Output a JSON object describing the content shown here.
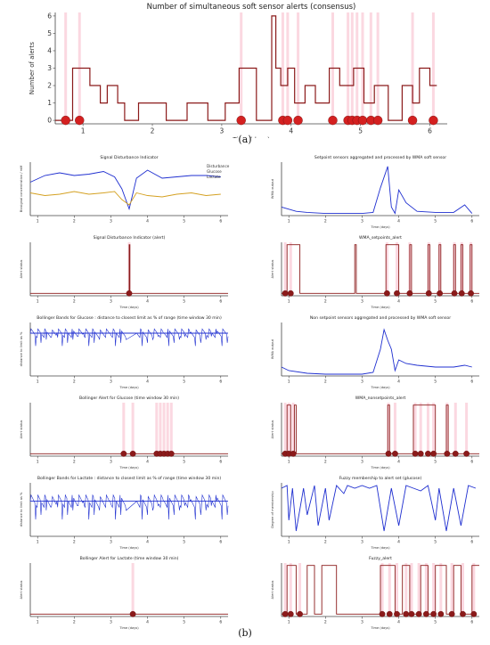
{
  "captions": {
    "a": "(a)",
    "b": "(b)"
  },
  "colors": {
    "alert": "#8b1a1a",
    "dot": "#d42020",
    "signal": "#1f2fd0",
    "signal2": "#d4a020",
    "band": "#f7b8c8"
  },
  "chart_data": [
    {
      "type": "line",
      "title": "Number of simultaneous soft sensor alerts (consensus)",
      "xlabel": "Time (days)",
      "ylabel": "Number of alerts",
      "xlim": [
        0.6,
        6.25
      ],
      "ylim": [
        -0.2,
        6.2
      ],
      "xticks": [
        1,
        2,
        3,
        4,
        5,
        6
      ],
      "yticks": [
        0,
        1,
        2,
        3,
        4,
        5,
        6
      ],
      "series": [
        {
          "x": [
            0.6,
            0.85,
            0.85,
            1.1,
            1.1,
            1.25,
            1.25,
            1.35,
            1.35,
            1.5,
            1.5,
            1.6,
            1.6,
            1.8,
            1.8,
            2.2,
            2.2,
            2.5,
            2.5,
            2.8,
            2.8,
            3.05,
            3.05,
            3.25,
            3.25,
            3.5,
            3.5,
            3.72,
            3.72,
            3.78,
            3.78,
            3.85,
            3.85,
            3.95,
            3.95,
            4.05,
            4.05,
            4.2,
            4.2,
            4.35,
            4.35,
            4.55,
            4.55,
            4.7,
            4.7,
            4.9,
            4.9,
            5.05,
            5.05,
            5.2,
            5.2,
            5.4,
            5.4,
            5.6,
            5.6,
            5.75,
            5.75,
            5.85,
            5.85,
            6.0,
            6.0,
            6.1
          ],
          "y": [
            0,
            0,
            3,
            3,
            2,
            2,
            1,
            1,
            2,
            2,
            1,
            1,
            0,
            0,
            1,
            1,
            0,
            0,
            1,
            1,
            0,
            0,
            1,
            1,
            3,
            3,
            0,
            0,
            6,
            6,
            3,
            3,
            2,
            2,
            3,
            3,
            1,
            1,
            2,
            2,
            1,
            1,
            3,
            3,
            2,
            2,
            3,
            3,
            1,
            1,
            2,
            2,
            0,
            0,
            2,
            2,
            1,
            1,
            3,
            3,
            2,
            2
          ]
        }
      ],
      "alert_markers_x": [
        0.75,
        0.95,
        3.28,
        3.88,
        3.95,
        4.1,
        4.6,
        4.82,
        4.88,
        4.95,
        5.03,
        5.15,
        5.25,
        5.75,
        6.05
      ]
    },
    {
      "type": "line",
      "title": "Signal Disturbance Indicator",
      "ylabel": "Biosignal concentration / mM",
      "xticks": [
        1,
        2,
        3,
        4,
        5,
        6
      ],
      "xlim": [
        0.8,
        6.2
      ],
      "ylim": [
        0,
        4
      ],
      "legend": [
        "Disturbance",
        "Glucose",
        "Lactate"
      ],
      "series": [
        {
          "name": "Glucose",
          "x": [
            0.8,
            1.2,
            1.6,
            2.0,
            2.4,
            2.8,
            3.1,
            3.3,
            3.5,
            3.7,
            4.0,
            4.4,
            4.8,
            5.2,
            5.6,
            6.0
          ],
          "y": [
            2.5,
            3.0,
            3.2,
            3.0,
            3.1,
            3.3,
            2.9,
            2.0,
            0.5,
            2.8,
            3.4,
            2.8,
            2.9,
            3.0,
            3.0,
            2.9
          ]
        },
        {
          "name": "Lactate",
          "x": [
            0.8,
            1.2,
            1.6,
            2.0,
            2.4,
            2.8,
            3.1,
            3.3,
            3.5,
            3.7,
            4.0,
            4.4,
            4.8,
            5.2,
            5.6,
            6.0
          ],
          "y": [
            1.7,
            1.5,
            1.6,
            1.8,
            1.6,
            1.7,
            1.8,
            1.2,
            0.8,
            1.7,
            1.5,
            1.4,
            1.6,
            1.7,
            1.5,
            1.6
          ]
        }
      ]
    },
    {
      "type": "line",
      "title": "Setpoint sensors aggregated and processed by WMA soft sensor",
      "ylabel": "WMA output",
      "xlabel": "Time (days)",
      "xticks": [
        1,
        2,
        3,
        4,
        5,
        6
      ],
      "xlim": [
        0.8,
        6.2
      ],
      "ylim": [
        0,
        2.5
      ],
      "series": [
        {
          "x": [
            0.8,
            1.0,
            1.2,
            1.5,
            2.0,
            2.5,
            3.0,
            3.3,
            3.5,
            3.6,
            3.7,
            3.8,
            3.9,
            4.0,
            4.2,
            4.5,
            5.0,
            5.5,
            5.8,
            6.0
          ],
          "y": [
            0.4,
            0.3,
            0.2,
            0.15,
            0.1,
            0.1,
            0.1,
            0.15,
            1.3,
            1.8,
            2.3,
            0.4,
            0.1,
            1.2,
            0.6,
            0.2,
            0.15,
            0.15,
            0.5,
            0.1
          ]
        }
      ]
    },
    {
      "type": "line",
      "title": "Signal Disturbance Indicator (alert)",
      "ylabel": "Alert status",
      "xlabel": "Time (days)",
      "xticks": [
        1,
        2,
        3,
        4,
        5,
        6
      ],
      "xlim": [
        0.8,
        6.2
      ],
      "ylim": [
        -0.05,
        1.05
      ],
      "series": [
        {
          "x": [
            0.8,
            3.5,
            3.5,
            3.52,
            3.52,
            6.2
          ],
          "y": [
            0,
            0,
            1,
            1,
            0,
            0
          ]
        }
      ],
      "alert_markers_x": [
        3.5
      ]
    },
    {
      "type": "line",
      "title": "WMA_setpoints_alert",
      "ylabel": "Alert status",
      "xlabel": "Time (days)",
      "xticks": [
        1,
        2,
        3,
        4,
        5,
        6
      ],
      "xlim": [
        0.8,
        6.2
      ],
      "ylim": [
        -0.05,
        1.05
      ],
      "series": [
        {
          "x": [
            0.8,
            0.95,
            0.95,
            1.3,
            1.3,
            2.8,
            2.8,
            2.84,
            2.84,
            3.65,
            3.65,
            4.0,
            4.0,
            4.3,
            4.3,
            4.35,
            4.35,
            4.8,
            4.8,
            4.85,
            4.85,
            5.1,
            5.1,
            5.15,
            5.15,
            5.5,
            5.5,
            5.55,
            5.55,
            5.7,
            5.7,
            5.75,
            5.75,
            5.95,
            5.95,
            6.0,
            6.0,
            6.2
          ],
          "y": [
            0,
            0,
            1,
            1,
            0,
            0,
            1,
            1,
            0,
            0,
            1,
            1,
            0,
            0,
            1,
            1,
            0,
            0,
            1,
            1,
            0,
            0,
            1,
            1,
            0,
            0,
            1,
            1,
            0,
            0,
            1,
            1,
            0,
            0,
            1,
            1,
            0,
            0
          ]
        }
      ],
      "alert_markers_x": [
        0.9,
        1.05,
        3.68,
        3.95,
        4.3,
        4.82,
        5.12,
        5.52,
        5.72,
        5.97
      ]
    },
    {
      "type": "line",
      "title": "Bollinger Bands for Glucose : distance to closest limit as % of range (time window 30 min)",
      "ylabel": "distance to limit as %",
      "xlabel": "Time (days)",
      "xticks": [
        1,
        2,
        3,
        4,
        5,
        6
      ],
      "xlim": [
        0.8,
        6.2
      ],
      "ylim": [
        0,
        50
      ],
      "series": [
        {
          "x": [
            0.8,
            6.2
          ],
          "y": [
            40,
            40
          ]
        }
      ]
    },
    {
      "type": "line",
      "title": "Non setpoint sensors aggregated and processed by WMA soft sensor",
      "ylabel": "WMA output",
      "xlabel": "Time (days)",
      "xticks": [
        1,
        2,
        3,
        4,
        5,
        6
      ],
      "xlim": [
        0.8,
        6.2
      ],
      "ylim": [
        0,
        3
      ],
      "series": [
        {
          "x": [
            0.8,
            1.0,
            1.5,
            2.0,
            2.5,
            3.0,
            3.3,
            3.5,
            3.6,
            3.7,
            3.8,
            3.9,
            4.0,
            4.2,
            4.5,
            5.0,
            5.5,
            5.8,
            6.0
          ],
          "y": [
            0.5,
            0.3,
            0.15,
            0.1,
            0.1,
            0.1,
            0.2,
            1.5,
            2.6,
            2.0,
            1.5,
            0.3,
            0.9,
            0.7,
            0.6,
            0.5,
            0.5,
            0.6,
            0.5
          ]
        }
      ]
    },
    {
      "type": "line",
      "title": "Bollinger Alert for Glucose (time window 30 min)",
      "ylabel": "Alert status",
      "xlabel": "Time (days)",
      "xticks": [
        1,
        2,
        3,
        4,
        5,
        6
      ],
      "xlim": [
        0.8,
        6.2
      ],
      "ylim": [
        -0.05,
        1.05
      ],
      "series": [
        {
          "x": [
            0.8,
            6.2
          ],
          "y": [
            0,
            0
          ]
        }
      ],
      "alert_markers_x": [
        3.35,
        3.6,
        4.25,
        4.35,
        4.45,
        4.55,
        4.65
      ]
    },
    {
      "type": "line",
      "title": "WMA_nonsetpoints_alert",
      "ylabel": "Alert status",
      "xlabel": "Time (days)",
      "xticks": [
        1,
        2,
        3,
        4,
        5,
        6
      ],
      "xlim": [
        0.8,
        6.2
      ],
      "ylim": [
        -0.05,
        1.05
      ],
      "series": [
        {
          "x": [
            0.8,
            0.95,
            0.95,
            1.05,
            1.05,
            1.15,
            1.15,
            1.2,
            1.2,
            3.7,
            3.7,
            3.75,
            3.75,
            4.4,
            4.4,
            5.0,
            5.0,
            5.3,
            5.3,
            5.35,
            5.35,
            6.2
          ],
          "y": [
            0,
            0,
            1,
            1,
            0,
            0,
            1,
            1,
            0,
            0,
            1,
            1,
            0,
            0,
            1,
            1,
            0,
            0,
            1,
            1,
            0,
            0
          ]
        }
      ],
      "alert_markers_x": [
        0.9,
        1.0,
        1.12,
        3.72,
        3.9,
        4.45,
        4.6,
        4.8,
        4.95,
        5.32,
        5.55,
        5.85
      ]
    },
    {
      "type": "line",
      "title": "Bollinger Bands for Lactate : distance to closest limit as % of range (time window 30 min)",
      "ylabel": "distance to limit as %",
      "xlabel": "Time (days)",
      "xticks": [
        1,
        2,
        3,
        4,
        5,
        6
      ],
      "xlim": [
        0.8,
        6.2
      ],
      "ylim": [
        15,
        50
      ],
      "series": [
        {
          "x": [
            0.8,
            6.2
          ],
          "y": [
            38,
            38
          ]
        }
      ]
    },
    {
      "type": "line",
      "title": "Fuzzy membership to alert set (glucose)",
      "ylabel": "Degree of membership",
      "xlabel": "Time (days)",
      "xticks": [
        1,
        2,
        3,
        4,
        5,
        6
      ],
      "xlim": [
        0.8,
        6.2
      ],
      "ylim": [
        0,
        1
      ],
      "series": [
        {
          "x": [
            0.8,
            0.95,
            1.0,
            1.1,
            1.2,
            1.4,
            1.5,
            1.7,
            1.8,
            2.0,
            2.1,
            2.3,
            2.5,
            2.6,
            2.8,
            3.0,
            3.2,
            3.4,
            3.6,
            3.8,
            4.0,
            4.2,
            4.4,
            4.6,
            4.8,
            5.0,
            5.1,
            5.3,
            5.5,
            5.7,
            5.9,
            6.1
          ],
          "y": [
            0.9,
            0.95,
            0.3,
            0.9,
            0.1,
            0.9,
            0.4,
            0.95,
            0.2,
            0.9,
            0.3,
            0.95,
            0.8,
            0.95,
            0.9,
            0.95,
            0.9,
            0.95,
            0.1,
            0.9,
            0.2,
            0.95,
            0.9,
            0.85,
            0.95,
            0.3,
            0.9,
            0.1,
            0.9,
            0.2,
            0.95,
            0.9
          ]
        }
      ]
    },
    {
      "type": "line",
      "title": "Bollinger Alert for Lactate (time window 30 min)",
      "ylabel": "Alert status",
      "xlabel": "Time (days)",
      "xticks": [
        1,
        2,
        3,
        4,
        5,
        6
      ],
      "xlim": [
        0.8,
        6.2
      ],
      "ylim": [
        -0.05,
        1.05
      ],
      "series": [
        {
          "x": [
            0.8,
            6.2
          ],
          "y": [
            0,
            0
          ]
        }
      ],
      "alert_markers_x": [
        3.6
      ]
    },
    {
      "type": "line",
      "title": "Fuzzy_alert",
      "ylabel": "Alert status",
      "xlabel": "Time (days)",
      "xticks": [
        1,
        2,
        3,
        4,
        5,
        6
      ],
      "xlim": [
        0.8,
        6.2
      ],
      "ylim": [
        -0.05,
        1.05
      ],
      "series": [
        {
          "x": [
            0.8,
            0.95,
            0.95,
            1.2,
            1.2,
            1.5,
            1.5,
            1.7,
            1.7,
            1.9,
            1.9,
            2.3,
            2.3,
            3.5,
            3.5,
            3.9,
            3.9,
            4.1,
            4.1,
            4.3,
            4.3,
            4.6,
            4.6,
            4.8,
            4.8,
            5.0,
            5.0,
            5.3,
            5.3,
            5.5,
            5.5,
            5.7,
            5.7,
            6.0,
            6.0,
            6.2
          ],
          "y": [
            0,
            0,
            1,
            1,
            0,
            0,
            1,
            1,
            0,
            0,
            1,
            1,
            0,
            0,
            1,
            1,
            0,
            0,
            1,
            1,
            0,
            0,
            1,
            1,
            0,
            0,
            1,
            1,
            0,
            0,
            1,
            1,
            0,
            0,
            1,
            1
          ]
        }
      ],
      "alert_markers_x": [
        0.9,
        1.05,
        1.3,
        3.55,
        3.75,
        3.95,
        4.2,
        4.35,
        4.55,
        4.75,
        4.95,
        5.15,
        5.45,
        5.75,
        6.05
      ]
    }
  ]
}
